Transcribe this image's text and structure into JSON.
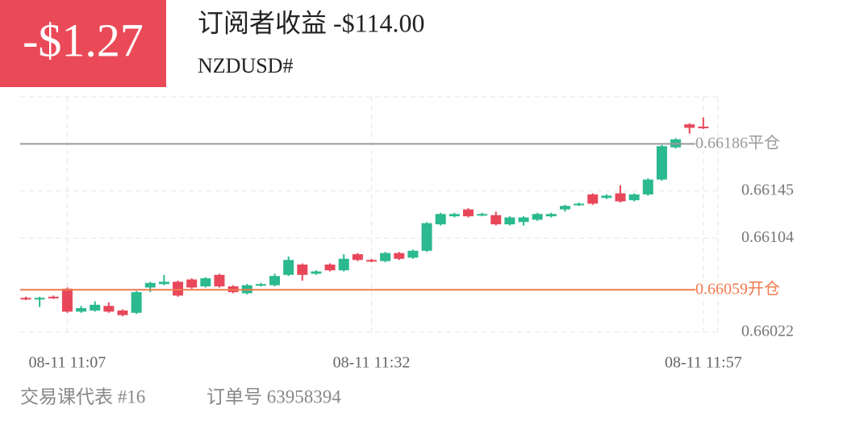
{
  "header": {
    "pnl": "-$1.27",
    "title": "订阅者收益 -$114.00",
    "symbol": "NZDUSD#"
  },
  "chart_data": {
    "type": "candlestick",
    "categories": [
      null,
      null,
      null,
      "08-11 11:07",
      null,
      null,
      null,
      null,
      null,
      null,
      null,
      null,
      null,
      null,
      null,
      null,
      null,
      null,
      null,
      null,
      null,
      null,
      null,
      null,
      null,
      "08-11 11:32",
      null,
      null,
      null,
      null,
      null,
      null,
      null,
      null,
      null,
      null,
      null,
      null,
      null,
      null,
      null,
      null,
      null,
      null,
      null,
      null,
      null,
      null,
      null,
      "08-11 11:57"
    ],
    "open": [
      0.66052,
      0.66051,
      0.66053,
      0.6606,
      0.6604,
      0.66041,
      0.66045,
      0.66041,
      0.66039,
      0.66061,
      0.66064,
      0.66066,
      0.66068,
      0.66062,
      0.66072,
      0.66062,
      0.66056,
      0.66063,
      0.66063,
      0.66072,
      0.66081,
      0.66073,
      0.66081,
      0.66076,
      0.6609,
      0.66085,
      0.66084,
      0.66091,
      0.66087,
      0.66093,
      0.66116,
      0.66123,
      0.66129,
      0.66124,
      0.66124,
      0.66116,
      0.66118,
      0.6612,
      0.66123,
      0.66129,
      0.66133,
      0.66142,
      0.66139,
      0.66143,
      0.66137,
      0.66142,
      0.66155,
      0.66183,
      0.66203,
      0.66201
    ],
    "high": [
      0.66053,
      0.66053,
      0.66054,
      0.66061,
      0.66045,
      0.66049,
      0.66048,
      0.66042,
      0.66058,
      0.66066,
      0.66072,
      0.66067,
      0.66069,
      0.6607,
      0.66073,
      0.66063,
      0.66064,
      0.66065,
      0.66073,
      0.66088,
      0.66082,
      0.66076,
      0.66082,
      0.6609,
      0.66091,
      0.66086,
      0.66092,
      0.66092,
      0.66094,
      0.66118,
      0.66126,
      0.66126,
      0.6613,
      0.66126,
      0.66127,
      0.66123,
      0.66123,
      0.66126,
      0.66126,
      0.66133,
      0.66135,
      0.66143,
      0.66142,
      0.6615,
      0.66143,
      0.66156,
      0.66185,
      0.66191,
      0.66204,
      0.66209
    ],
    "low": [
      0.6605,
      0.66044,
      0.66051,
      0.66039,
      0.66039,
      0.6604,
      0.66039,
      0.66036,
      0.66038,
      0.66057,
      0.66063,
      0.66053,
      0.6606,
      0.66061,
      0.66061,
      0.66056,
      0.66055,
      0.66062,
      0.66062,
      0.66071,
      0.66067,
      0.66072,
      0.66075,
      0.66075,
      0.66084,
      0.66083,
      0.66083,
      0.66085,
      0.66086,
      0.66092,
      0.66115,
      0.66122,
      0.66122,
      0.66123,
      0.66115,
      0.66115,
      0.66115,
      0.66119,
      0.66122,
      0.66127,
      0.66132,
      0.66133,
      0.66138,
      0.66135,
      0.66136,
      0.66141,
      0.66154,
      0.66182,
      0.66195,
      0.66199
    ],
    "close": [
      0.66051,
      0.66052,
      0.66052,
      0.6604,
      0.66043,
      0.66046,
      0.6604,
      0.66037,
      0.66057,
      0.66065,
      0.66066,
      0.66054,
      0.66061,
      0.66069,
      0.66062,
      0.66057,
      0.66063,
      0.66064,
      0.66071,
      0.66085,
      0.66072,
      0.66075,
      0.66076,
      0.66086,
      0.66085,
      0.66084,
      0.66091,
      0.66086,
      0.66093,
      0.66117,
      0.66125,
      0.66125,
      0.66123,
      0.66125,
      0.66116,
      0.66122,
      0.66122,
      0.66125,
      0.66125,
      0.66132,
      0.66134,
      0.66134,
      0.66141,
      0.66136,
      0.66142,
      0.66155,
      0.66184,
      0.6619,
      0.662,
      0.662
    ],
    "up_color": "#2bb98f",
    "down_color": "#e8475a",
    "ylim": [
      0.66022,
      0.66227
    ],
    "yticks": [
      0.66022,
      0.66104,
      0.66145
    ],
    "grid": true,
    "open_price": 0.66059,
    "open_text": "开仓",
    "open_color": "#f07a4f",
    "close_price": 0.66186,
    "close_text": "平仓",
    "close_color": "#9a9a9a"
  },
  "footer": {
    "teacher": "交易课代表 #16",
    "order": "订单号 63958394"
  }
}
